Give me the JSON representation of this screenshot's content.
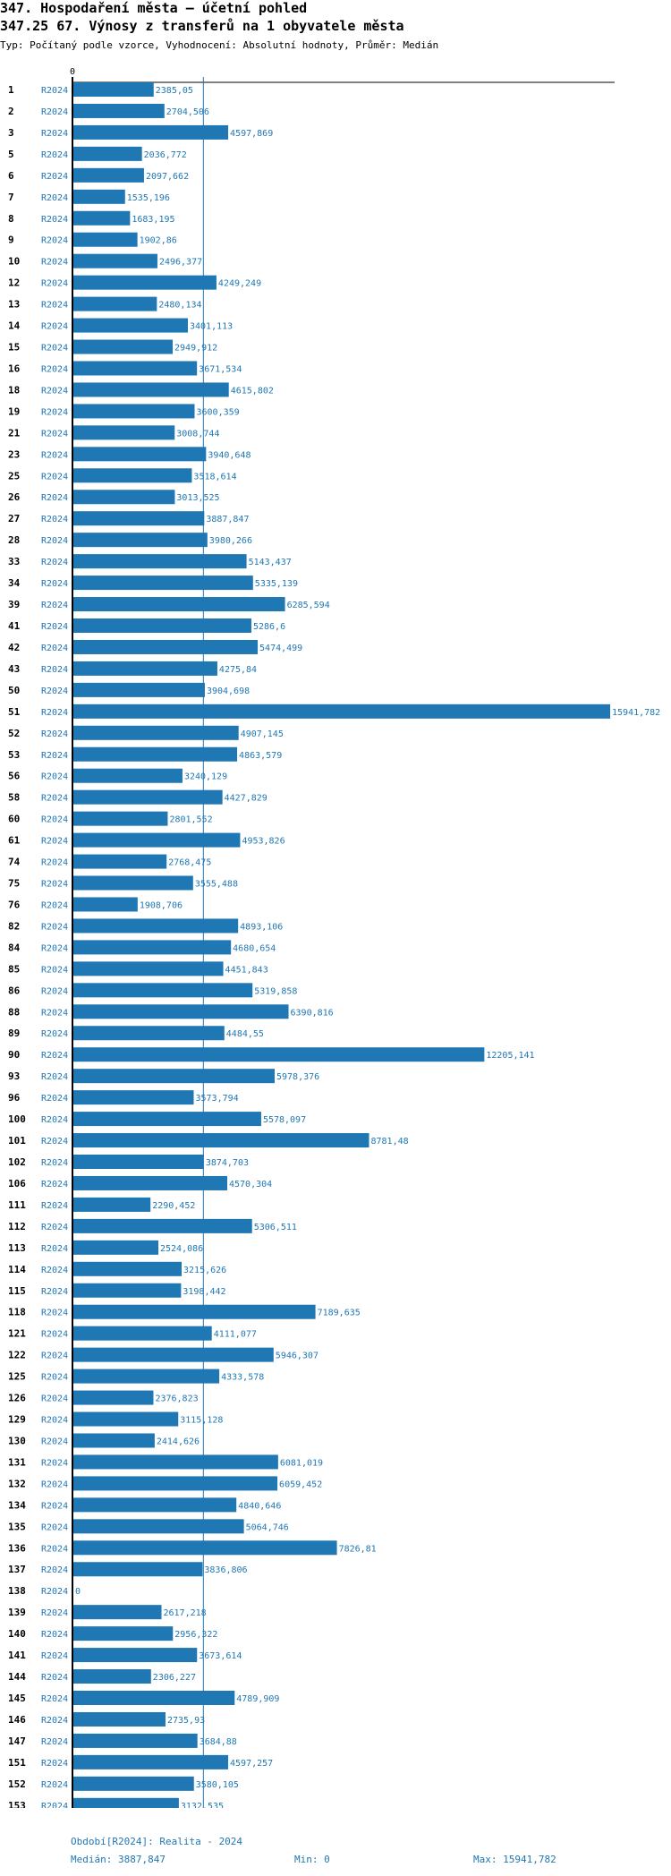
{
  "header": {
    "title": "347. Hospodaření města – účetní pohled",
    "subtitle": "347.25 67. Výnosy z transferů na 1 obyvatele města",
    "description": "Typ: Počítaný podle vzorce, Vyhodnocení: Absolutní hodnoty, Průměr: Medián"
  },
  "colors": {
    "bar": "#1f77b4",
    "label": "#1f77b4",
    "axis": "#000000",
    "median_line": "#1f77b4"
  },
  "chart_data": {
    "type": "bar",
    "orientation": "horizontal",
    "x_axis_tick": "0",
    "period_label": "R2024",
    "categories": [
      "1",
      "2",
      "3",
      "5",
      "6",
      "7",
      "8",
      "9",
      "10",
      "12",
      "13",
      "14",
      "15",
      "16",
      "18",
      "19",
      "21",
      "23",
      "25",
      "26",
      "27",
      "28",
      "33",
      "34",
      "39",
      "41",
      "42",
      "43",
      "50",
      "51",
      "52",
      "53",
      "56",
      "58",
      "60",
      "61",
      "74",
      "75",
      "76",
      "82",
      "84",
      "85",
      "86",
      "88",
      "89",
      "90",
      "93",
      "96",
      "100",
      "101",
      "102",
      "106",
      "111",
      "112",
      "113",
      "114",
      "115",
      "118",
      "121",
      "122",
      "125",
      "126",
      "129",
      "130",
      "131",
      "132",
      "134",
      "135",
      "136",
      "137",
      "138",
      "139",
      "140",
      "141",
      "144",
      "145",
      "146",
      "147",
      "151",
      "152",
      "153"
    ],
    "values": [
      2385.05,
      2704.506,
      4597.869,
      2036.772,
      2097.662,
      1535.196,
      1683.195,
      1902.86,
      2496.377,
      4249.249,
      2480.134,
      3401.113,
      2949.912,
      3671.534,
      4615.802,
      3600.359,
      3008.744,
      3940.648,
      3518.614,
      3013.525,
      3887.847,
      3980.266,
      5143.437,
      5335.139,
      6285.594,
      5286.6,
      5474.499,
      4275.84,
      3904.698,
      15941.782,
      4907.145,
      4863.579,
      3240.129,
      4427.829,
      2801.552,
      4953.826,
      2768.475,
      3555.488,
      1908.706,
      4893.106,
      4680.654,
      4451.843,
      5319.858,
      6390.816,
      4484.55,
      12205.141,
      5978.376,
      3573.794,
      5578.097,
      8781.48,
      3874.703,
      4570.304,
      2290.452,
      5306.511,
      2524.086,
      3215.626,
      3198.442,
      7189.635,
      4111.077,
      5946.307,
      4333.578,
      2376.823,
      3115.128,
      2414.626,
      6081.019,
      6059.452,
      4840.646,
      5064.746,
      7826.81,
      3836.806,
      0,
      2617.218,
      2956.322,
      3673.614,
      2306.227,
      4789.909,
      2735.93,
      3684.88,
      4597.257,
      3580.105,
      3132.535
    ],
    "value_labels": [
      "2385,05",
      "2704,506",
      "4597,869",
      "2036,772",
      "2097,662",
      "1535,196",
      "1683,195",
      "1902,86",
      "2496,377",
      "4249,249",
      "2480,134",
      "3401,113",
      "2949,912",
      "3671,534",
      "4615,802",
      "3600,359",
      "3008,744",
      "3940,648",
      "3518,614",
      "3013,525",
      "3887,847",
      "3980,266",
      "5143,437",
      "5335,139",
      "6285,594",
      "5286,6",
      "5474,499",
      "4275,84",
      "3904,698",
      "15941,782",
      "4907,145",
      "4863,579",
      "3240,129",
      "4427,829",
      "2801,552",
      "4953,826",
      "2768,475",
      "3555,488",
      "1908,706",
      "4893,106",
      "4680,654",
      "4451,843",
      "5319,858",
      "6390,816",
      "4484,55",
      "12205,141",
      "5978,376",
      "3573,794",
      "5578,097",
      "8781,48",
      "3874,703",
      "4570,304",
      "2290,452",
      "5306,511",
      "2524,086",
      "3215,626",
      "3198,442",
      "7189,635",
      "4111,077",
      "5946,307",
      "4333,578",
      "2376,823",
      "3115,128",
      "2414,626",
      "6081,019",
      "6059,452",
      "4840,646",
      "5064,746",
      "7826,81",
      "3836,806",
      "0",
      "2617,218",
      "2956,322",
      "3673,614",
      "2306,227",
      "4789,909",
      "2735,93",
      "3684,88",
      "4597,257",
      "3580,105",
      "3132,535"
    ],
    "median": 3887.847,
    "min": 0,
    "max": 15941.782,
    "xlim": [
      0,
      15941.782
    ]
  },
  "footer": {
    "period": "Období[R2024]: Realita - 2024",
    "median": "Medián: 3887,847",
    "min": "Min: 0",
    "max": "Max: 15941,782"
  }
}
